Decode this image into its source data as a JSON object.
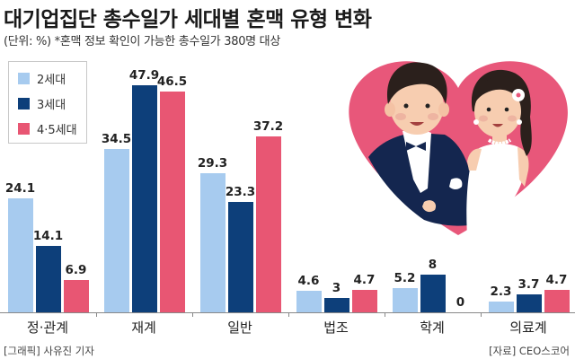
{
  "header": {
    "title": "대기업집단 총수일가 세대별 혼맥 유형 변화",
    "subtitle": "(단위: %) *혼맥 정보 확인이 가능한 총수일가 380명 대상"
  },
  "legend": {
    "items": [
      {
        "label": "2세대",
        "color": "#a7cbef"
      },
      {
        "label": "3세대",
        "color": "#0d3f7a"
      },
      {
        "label": "4·5세대",
        "color": "#e85673"
      }
    ]
  },
  "colors": {
    "gen2": "#a7cbef",
    "gen3": "#0d3f7a",
    "gen45": "#e85673",
    "heart": "#e8577a",
    "axis": "#888888"
  },
  "illustration": {
    "icon": "wedding-couple-in-heart-icon"
  },
  "chart_data": {
    "type": "bar",
    "title": "대기업집단 총수일가 세대별 혼맥 유형 변화",
    "subtitle": "(단위: %) *혼맥 정보 확인이 가능한 총수일가 380명 대상",
    "xlabel": "",
    "ylabel": "%",
    "ylim": [
      0,
      50
    ],
    "grid": false,
    "legend_position": "top-left",
    "categories": [
      "정·관계",
      "재계",
      "일반",
      "법조",
      "학계",
      "의료계"
    ],
    "series": [
      {
        "name": "2세대",
        "color": "#a7cbef",
        "values": [
          24.1,
          34.5,
          29.3,
          4.6,
          5.2,
          2.3
        ],
        "labels": [
          "24.1",
          "34.5",
          "29.3",
          "4.6",
          "5.2",
          "2.3"
        ]
      },
      {
        "name": "3세대",
        "color": "#0d3f7a",
        "values": [
          14.1,
          47.9,
          23.3,
          3,
          8,
          3.7
        ],
        "labels": [
          "14.1",
          "47.9",
          "23.3",
          "3",
          "8",
          "3.7"
        ]
      },
      {
        "name": "4·5세대",
        "color": "#e85673",
        "values": [
          6.9,
          46.5,
          37.2,
          4.7,
          0,
          4.7
        ],
        "labels": [
          "6.9",
          "46.5",
          "37.2",
          "4.7",
          "0",
          "4.7"
        ]
      }
    ]
  },
  "footer": {
    "credit": "[그래픽] 사유진 기자",
    "source": "[자료] CEO스코어"
  }
}
